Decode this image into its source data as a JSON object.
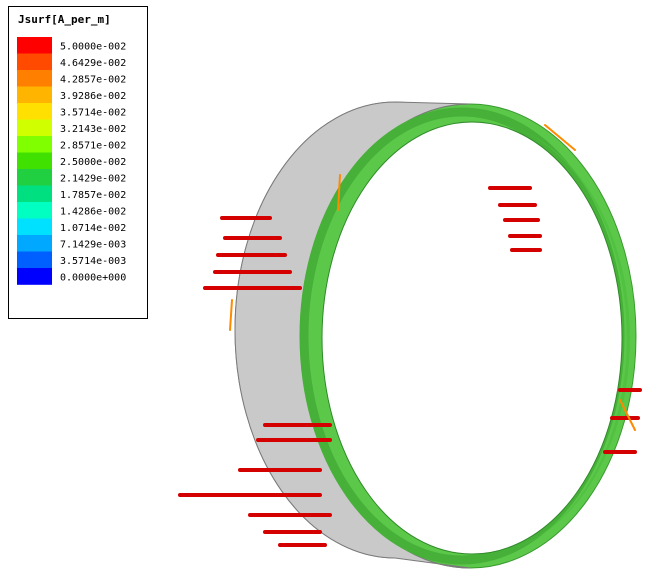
{
  "legend": {
    "title": "Jsurf[A_per_m]",
    "labels": [
      "5.0000e-002",
      "4.6429e-002",
      "4.2857e-002",
      "3.9286e-002",
      "3.5714e-002",
      "3.2143e-002",
      "2.8571e-002",
      "2.5000e-002",
      "2.1429e-002",
      "1.7857e-002",
      "1.4286e-002",
      "1.0714e-002",
      "7.1429e-003",
      "3.5714e-003",
      "0.0000e+000"
    ],
    "colors": [
      "#ff0000",
      "#ff4a00",
      "#ff8000",
      "#ffb400",
      "#ffe000",
      "#d0ff00",
      "#80ff00",
      "#40e000",
      "#20d040",
      "#00e080",
      "#00ffc0",
      "#00e0ff",
      "#00a8ff",
      "#0060ff",
      "#0000ff"
    ]
  }
}
